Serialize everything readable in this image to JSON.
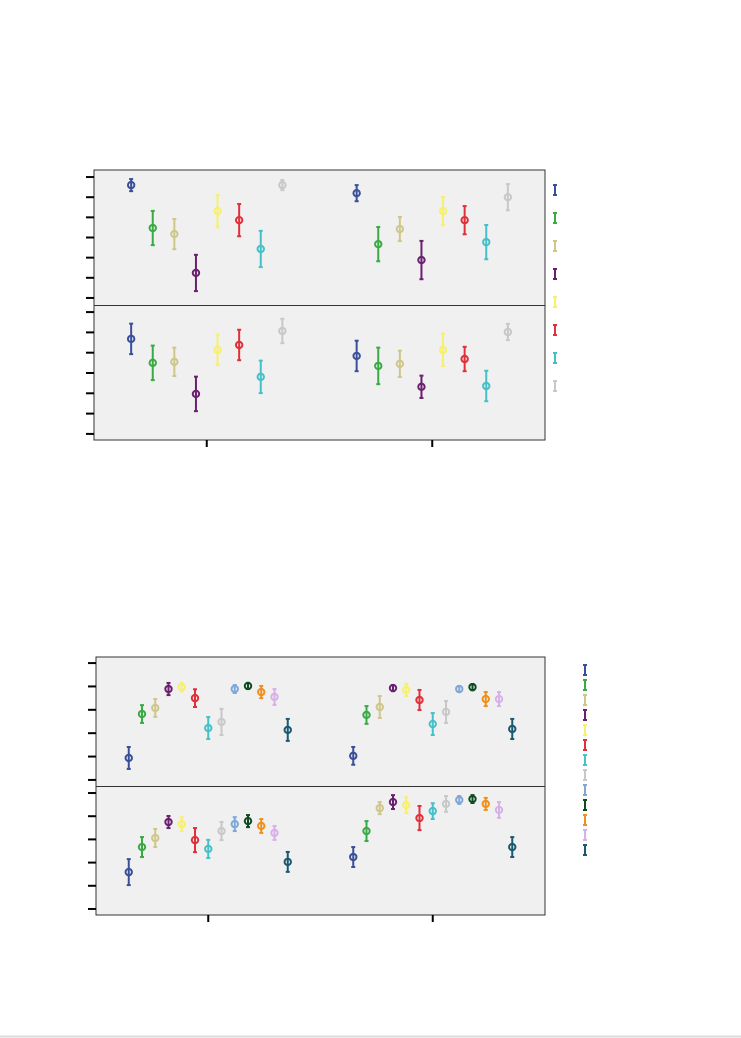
{
  "chart_data": [
    {
      "type": "errorbar",
      "categories": [
        null,
        null
      ],
      "colors": [
        "#3a4f9a",
        "#3aaa45",
        "#cfc68a",
        "#6a2070",
        "#f7f06a",
        "#e0303a",
        "#45c0c8",
        "#c8c8c8"
      ],
      "panels": [
        {
          "ylim": [
            -0.35,
            6.35
          ],
          "yticks": [
            0,
            1,
            2,
            3,
            4,
            5,
            6
          ],
          "series": [
            {
              "values": [
                5.6,
                5.2
              ],
              "errors": [
                0.3,
                0.4
              ]
            },
            {
              "values": [
                3.47,
                2.67
              ],
              "errors": [
                0.85,
                0.85
              ]
            },
            {
              "values": [
                3.17,
                3.42
              ],
              "errors": [
                0.75,
                0.6
              ]
            },
            {
              "values": [
                1.24,
                1.88
              ],
              "errors": [
                0.9,
                0.95
              ]
            },
            {
              "values": [
                4.31,
                4.31
              ],
              "errors": [
                0.8,
                0.7
              ]
            },
            {
              "values": [
                3.86,
                3.86
              ],
              "errors": [
                0.8,
                0.7
              ]
            },
            {
              "values": [
                2.43,
                2.77
              ],
              "errors": [
                0.9,
                0.85
              ]
            },
            {
              "values": [
                5.6,
                5.0
              ],
              "errors": [
                0.25,
                0.65
              ]
            }
          ]
        },
        {
          "ylim": [
            -0.3,
            6.3
          ],
          "yticks": [
            0,
            1,
            2,
            3,
            4,
            5,
            6
          ],
          "series": [
            {
              "values": [
                4.68,
                3.84
              ],
              "errors": [
                0.75,
                0.75
              ]
            },
            {
              "values": [
                3.5,
                3.35
              ],
              "errors": [
                0.85,
                0.9
              ]
            },
            {
              "values": [
                3.55,
                3.45
              ],
              "errors": [
                0.7,
                0.65
              ]
            },
            {
              "values": [
                1.97,
                2.32
              ],
              "errors": [
                0.85,
                0.55
              ]
            },
            {
              "values": [
                4.14,
                4.14
              ],
              "errors": [
                0.75,
                0.8
              ]
            },
            {
              "values": [
                4.38,
                3.69
              ],
              "errors": [
                0.75,
                0.6
              ]
            },
            {
              "values": [
                2.81,
                2.36
              ],
              "errors": [
                0.8,
                0.75
              ]
            },
            {
              "values": [
                5.07,
                5.02
              ],
              "errors": [
                0.6,
                0.4
              ]
            }
          ]
        }
      ]
    },
    {
      "type": "errorbar",
      "categories": [
        null,
        null
      ],
      "colors": [
        "#3a4f9a",
        "#3aaa45",
        "#cfc68a",
        "#6a2070",
        "#f7f06a",
        "#e0303a",
        "#45c0c8",
        "#c8c8c8",
        "#7fa8d8",
        "#0f4a20",
        "#f0901a",
        "#d8b0e8",
        "#1a5a70"
      ],
      "panels": [
        {
          "ylim": [
            -0.26,
            5.26
          ],
          "yticks": [
            0,
            1,
            2,
            3,
            4,
            5
          ],
          "series": [
            {
              "values": [
                0.94,
                1.03
              ],
              "errors": [
                0.47,
                0.38
              ]
            },
            {
              "values": [
                2.82,
                2.78
              ],
              "errors": [
                0.38,
                0.38
              ]
            },
            {
              "values": [
                3.08,
                3.12
              ],
              "errors": [
                0.38,
                0.47
              ]
            },
            {
              "values": [
                3.89,
                3.93
              ],
              "errors": [
                0.26,
                0.13
              ]
            },
            {
              "values": [
                3.97,
                3.85
              ],
              "errors": [
                0.17,
                0.26
              ]
            },
            {
              "values": [
                3.5,
                3.42
              ],
              "errors": [
                0.38,
                0.43
              ]
            },
            {
              "values": [
                2.22,
                2.39
              ],
              "errors": [
                0.47,
                0.47
              ]
            },
            {
              "values": [
                2.48,
                2.91
              ],
              "errors": [
                0.56,
                0.47
              ]
            },
            {
              "values": [
                3.89,
                3.89
              ],
              "errors": [
                0.17,
                0.13
              ]
            },
            {
              "values": [
                4.02,
                3.97
              ],
              "errors": [
                0.13,
                0.13
              ]
            },
            {
              "values": [
                3.76,
                3.46
              ],
              "errors": [
                0.26,
                0.3
              ]
            },
            {
              "values": [
                3.55,
                3.46
              ],
              "errors": [
                0.34,
                0.3
              ]
            },
            {
              "values": [
                2.14,
                2.18
              ],
              "errors": [
                0.47,
                0.43
              ]
            }
          ]
        },
        {
          "ylim": [
            -0.26,
            5.26
          ],
          "yticks": [
            0,
            1,
            2,
            3,
            4,
            5
          ],
          "series": [
            {
              "values": [
                1.59,
                2.24
              ],
              "errors": [
                0.56,
                0.43
              ]
            },
            {
              "values": [
                2.67,
                3.36
              ],
              "errors": [
                0.43,
                0.43
              ]
            },
            {
              "values": [
                3.06,
                4.35
              ],
              "errors": [
                0.39,
                0.26
              ]
            },
            {
              "values": [
                3.75,
                4.61
              ],
              "errors": [
                0.26,
                0.3
              ]
            },
            {
              "values": [
                3.66,
                4.48
              ],
              "errors": [
                0.3,
                0.34
              ]
            },
            {
              "values": [
                2.97,
                3.92
              ],
              "errors": [
                0.52,
                0.52
              ]
            },
            {
              "values": [
                2.59,
                4.22
              ],
              "errors": [
                0.39,
                0.34
              ]
            },
            {
              "values": [
                3.36,
                4.53
              ],
              "errors": [
                0.39,
                0.34
              ]
            },
            {
              "values": [
                3.66,
                4.7
              ],
              "errors": [
                0.3,
                0.17
              ]
            },
            {
              "values": [
                3.79,
                4.74
              ],
              "errors": [
                0.26,
                0.17
              ]
            },
            {
              "values": [
                3.58,
                4.53
              ],
              "errors": [
                0.3,
                0.26
              ]
            },
            {
              "values": [
                3.28,
                4.27
              ],
              "errors": [
                0.3,
                0.34
              ]
            },
            {
              "values": [
                2.03,
                2.67
              ],
              "errors": [
                0.43,
                0.43
              ]
            }
          ]
        }
      ]
    }
  ]
}
